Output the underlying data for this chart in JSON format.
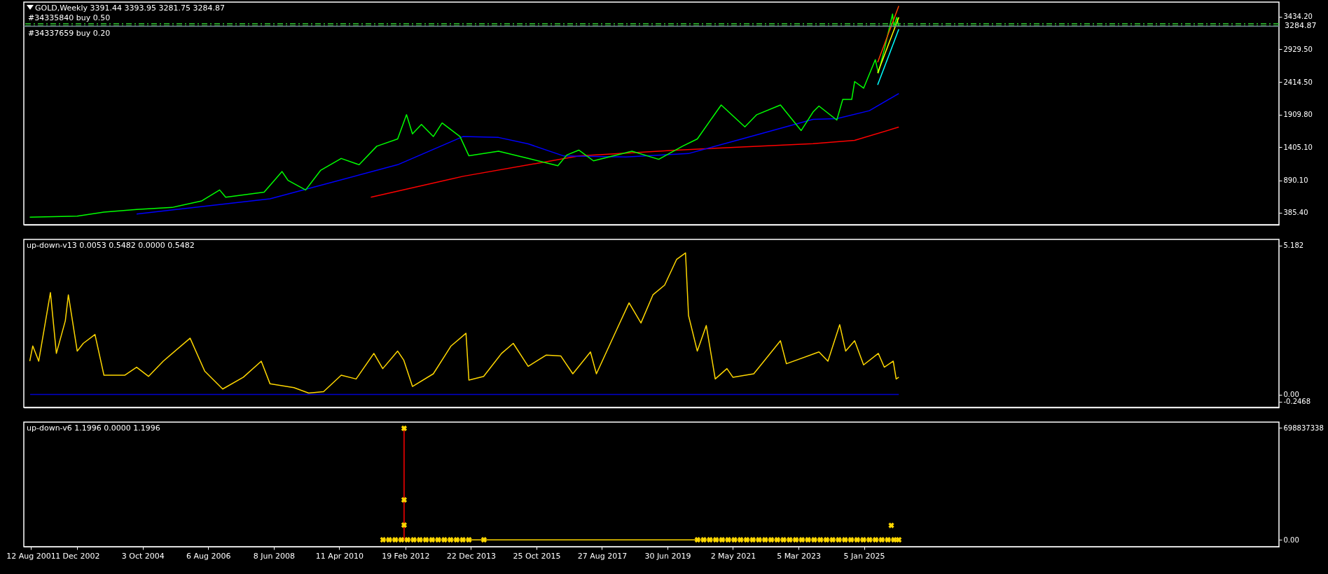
{
  "chart_data": [
    {
      "type": "line",
      "title": "GOLD,Weekly  3391.44 3393.95 3281.75 3284.87",
      "xlim": [
        "2001-06-01",
        "2036-09-01"
      ],
      "ylim": [
        200,
        3660
      ],
      "yticks": [
        {
          "value": 3434.2,
          "label": "3434.20"
        },
        {
          "value": 2929.5,
          "label": "2929.50"
        },
        {
          "value": 2414.5,
          "label": "2414.50"
        },
        {
          "value": 1909.8,
          "label": "1909.80"
        },
        {
          "value": 1405.1,
          "label": "1405.10"
        },
        {
          "value": 890.1,
          "label": "890.10"
        },
        {
          "value": 385.4,
          "label": "385.40"
        }
      ],
      "tick_labels": "y",
      "series": [
        {
          "color": "#ff0000",
          "x": [
            "2011-03",
            "2013-10",
            "2017-01",
            "2019-10",
            "2023-08",
            "2024-10",
            "2025-12-28"
          ],
          "values": [
            627,
            952,
            1268,
            1359,
            1460,
            1511,
            1717
          ]
        },
        {
          "color": "#0000ff",
          "x": [
            "2004-08",
            "2008-05",
            "2011-12",
            "2013-10",
            "2014-10",
            "2015-08",
            "2016-08",
            "2018-05",
            "2020-02",
            "2021-08",
            "2023-08",
            "2024-04",
            "2025-03",
            "2025-12-28"
          ],
          "values": [
            365,
            602,
            1132,
            1570,
            1556,
            1457,
            1268,
            1253,
            1306,
            1533,
            1838,
            1848,
            1972,
            2239
          ]
        },
        {
          "color": "#00ff00",
          "x": [
            "2001-08",
            "2002-12",
            "2003-09",
            "2004-08",
            "2005-08",
            "2006-06",
            "2006-12",
            "2007-02",
            "2008-03",
            "2008-09",
            "2008-11",
            "2009-05",
            "2009-10",
            "2010-05",
            "2010-11",
            "2011-05",
            "2011-12",
            "2012-03",
            "2012-05",
            "2012-08",
            "2012-12",
            "2013-03",
            "2013-09",
            "2013-12",
            "2014-10",
            "2015-08",
            "2016-06",
            "2016-09",
            "2017-01",
            "2017-06",
            "2018-07",
            "2019-04",
            "2019-12",
            "2020-05",
            "2021-01",
            "2021-09",
            "2022-01",
            "2022-09",
            "2023-04",
            "2023-08",
            "2023-10",
            "2024-04",
            "2024-06",
            "2024-09",
            "2024-10",
            "2025-01",
            "2025-05",
            "2025-06",
            "2025-08",
            "2025-10-25",
            "2025-11-08",
            "2025-12-07",
            "2025-12-28"
          ],
          "values": [
            316,
            334,
            396,
            437,
            468,
            571,
            740,
            627,
            705,
            1026,
            890,
            740,
            1044,
            1230,
            1132,
            1420,
            1533,
            1910,
            1611,
            1758,
            1570,
            1781,
            1570,
            1271,
            1343,
            1230,
            1117,
            1284,
            1359,
            1193,
            1343,
            1216,
            1420,
            1533,
            2061,
            1721,
            1910,
            2061,
            1663,
            1951,
            2044,
            1827,
            2147,
            2147,
            2425,
            2322,
            2765,
            2559,
            2919,
            3475,
            3280,
            3424,
            3284.87
          ]
        },
        {
          "color": "#ff4500",
          "x": [
            "2025-05-25",
            "2025-12-28"
          ],
          "values": [
            2724,
            3599
          ]
        },
        {
          "color": "#ffff00",
          "x": [
            "2025-05-25",
            "2025-12-28"
          ],
          "values": [
            2559,
            3424
          ]
        },
        {
          "color": "#00ffff",
          "x": [
            "2025-05-25",
            "2025-12-28"
          ],
          "values": [
            2373,
            3238
          ]
        }
      ],
      "ref_lines": [
        {
          "axis": "y",
          "value": 3324,
          "label": "#34335840 buy 0.50",
          "color": "#32cd32",
          "line_style": "dashed"
        },
        {
          "axis": "y",
          "value": 3290,
          "label": "#34337659 buy 0.20",
          "color": "#32cd32",
          "line_style": "dashed"
        },
        {
          "axis": "y",
          "value": 3284.87,
          "label": "3284.87",
          "color": "#778899",
          "line_style": "solid"
        }
      ]
    },
    {
      "type": "line",
      "title": "up-down-v13 0.0053 0.5482 0.0000 0.5482",
      "xlim": [
        "2001-06-01",
        "2036-09-01"
      ],
      "ylim": [
        -0.45,
        5.4
      ],
      "yticks": [
        5.182,
        {
          "value": 0,
          "label": "0.00"
        },
        -0.2468
      ],
      "tick_labels": "y",
      "series": [
        {
          "color": "#0000cd",
          "x": [
            "2001-08-05",
            "2025-12-28"
          ],
          "values": [
            0,
            0
          ]
        },
        {
          "color": "#ffd700",
          "x": [
            "2001-08",
            "2001-09",
            "2001-11",
            "2002-03",
            "2002-05",
            "2002-08",
            "2002-09",
            "2002-12",
            "2003-02",
            "2003-06",
            "2003-09",
            "2004-04",
            "2004-08",
            "2004-12",
            "2005-05",
            "2006-02",
            "2006-07",
            "2007-01",
            "2007-08",
            "2008-02",
            "2008-05",
            "2009-01",
            "2009-06",
            "2009-11",
            "2010-05",
            "2010-10",
            "2011-04",
            "2011-07",
            "2011-12",
            "2012-02",
            "2012-05",
            "2012-12",
            "2013-06",
            "2013-11",
            "2013-12",
            "2014-05",
            "2014-11",
            "2015-03",
            "2015-08",
            "2016-02",
            "2016-07",
            "2016-11",
            "2017-05",
            "2017-07",
            "2018-02",
            "2018-06",
            "2018-10",
            "2019-02",
            "2019-06",
            "2019-10",
            "2020-01",
            "2020-02",
            "2020-05",
            "2020-08",
            "2020-11",
            "2021-03",
            "2021-05",
            "2021-12",
            "2022-09",
            "2022-11",
            "2023-10",
            "2024-01",
            "2024-05",
            "2024-07",
            "2024-10",
            "2025-01",
            "2025-06",
            "2025-08",
            "2025-11",
            "2025-12-01",
            "2025-12-28"
          ],
          "values": [
            1.16,
            1.69,
            1.16,
            3.55,
            1.43,
            2.57,
            3.47,
            1.51,
            1.78,
            2.09,
            0.67,
            0.67,
            0.95,
            0.63,
            1.16,
            1.96,
            0.81,
            0.19,
            0.6,
            1.16,
            0.37,
            0.24,
            0.05,
            0.1,
            0.67,
            0.54,
            1.43,
            0.9,
            1.51,
            1.2,
            0.28,
            0.72,
            1.69,
            2.13,
            0.5,
            0.63,
            1.43,
            1.78,
            0.98,
            1.37,
            1.34,
            0.72,
            1.48,
            0.72,
            2.31,
            3.19,
            2.49,
            3.47,
            3.81,
            4.7,
            4.93,
            2.75,
            1.51,
            2.4,
            0.54,
            0.9,
            0.6,
            0.72,
            1.87,
            1.07,
            1.48,
            1.16,
            2.43,
            1.51,
            1.87,
            1.03,
            1.43,
            0.95,
            1.16,
            0.54,
            0.6
          ]
        }
      ]
    },
    {
      "type": "line",
      "title": "up-down-v6  1.1996 0.0000 1.1996",
      "xlim": [
        "2001-06-01",
        "2036-09-01"
      ],
      "ylim": [
        -43000000,
        734000000
      ],
      "yticks": [
        698837338,
        {
          "value": 0,
          "label": "0.00"
        }
      ],
      "xticks": [
        {
          "value": "2001-08-12",
          "label": "12 Aug 2001"
        },
        {
          "value": "2002-12-01",
          "label": "1 Dec 2002"
        },
        {
          "value": "2004-10-03",
          "label": "3 Oct 2004"
        },
        {
          "value": "2006-08-06",
          "label": "6 Aug 2006"
        },
        {
          "value": "2008-06-08",
          "label": "8 Jun 2008"
        },
        {
          "value": "2010-04-11",
          "label": "11 Apr 2010"
        },
        {
          "value": "2012-02-19",
          "label": "19 Feb 2012"
        },
        {
          "value": "2013-12-22",
          "label": "22 Dec 2013"
        },
        {
          "value": "2015-10-25",
          "label": "25 Oct 2015"
        },
        {
          "value": "2017-08-27",
          "label": "27 Aug 2017"
        },
        {
          "value": "2019-06-30",
          "label": "30 Jun 2019"
        },
        {
          "value": "2021-05-02",
          "label": "2 May 2021"
        },
        {
          "value": "2023-03-05",
          "label": "5 Mar 2023"
        },
        {
          "value": "2025-01-05",
          "label": "5 Jan 2025"
        }
      ],
      "series": [
        {
          "color": "#ffd700",
          "x": [
            "2011-07-03",
            "2025-12-28"
          ],
          "values": [
            0,
            0
          ]
        },
        {
          "color": "#ff0000",
          "x": [
            "2012-02-05",
            "2012-02-05"
          ],
          "values": [
            0,
            695000000
          ]
        },
        {
          "type": "scatter",
          "marker": "cross",
          "color": "#ffd700",
          "x": [
            "2012-02-05",
            "2012-02-05",
            "2012-02-05",
            "2025-10-12",
            "2011-07-03",
            "2011-09-04",
            "2011-11-06",
            "2012-01-08",
            "2012-03-11",
            "2012-05-13",
            "2012-07-15",
            "2012-09-16",
            "2012-11-18",
            "2013-01-20",
            "2013-03-24",
            "2013-05-26",
            "2013-07-28",
            "2013-09-29",
            "2013-12-01",
            "2014-05-04",
            "2020-05-03",
            "2020-07-05",
            "2020-09-06",
            "2020-11-08",
            "2021-01-10",
            "2021-03-14",
            "2021-05-16",
            "2021-07-18",
            "2021-09-19",
            "2021-11-21",
            "2022-01-23",
            "2022-03-27",
            "2022-05-29",
            "2022-07-31",
            "2022-10-02",
            "2022-12-04",
            "2023-02-05",
            "2023-04-09",
            "2023-06-11",
            "2023-08-13",
            "2023-10-15",
            "2023-12-17",
            "2024-02-18",
            "2024-04-21",
            "2024-06-23",
            "2024-08-25",
            "2024-10-27",
            "2024-12-29",
            "2025-03-02",
            "2025-05-04",
            "2025-07-06",
            "2025-09-07",
            "2025-11-09",
            "2025-12-28"
          ],
          "values": [
            695000000,
            249000000,
            92000000,
            90000000,
            0,
            0,
            0,
            0,
            0,
            0,
            0,
            0,
            0,
            0,
            0,
            0,
            0,
            0,
            0,
            0,
            0,
            0,
            0,
            0,
            0,
            0,
            0,
            0,
            0,
            0,
            0,
            0,
            0,
            0,
            0,
            0,
            0,
            0,
            0,
            0,
            0,
            0,
            0,
            0,
            0,
            0,
            0,
            0,
            0,
            0,
            0,
            0,
            0,
            0
          ]
        }
      ]
    }
  ]
}
